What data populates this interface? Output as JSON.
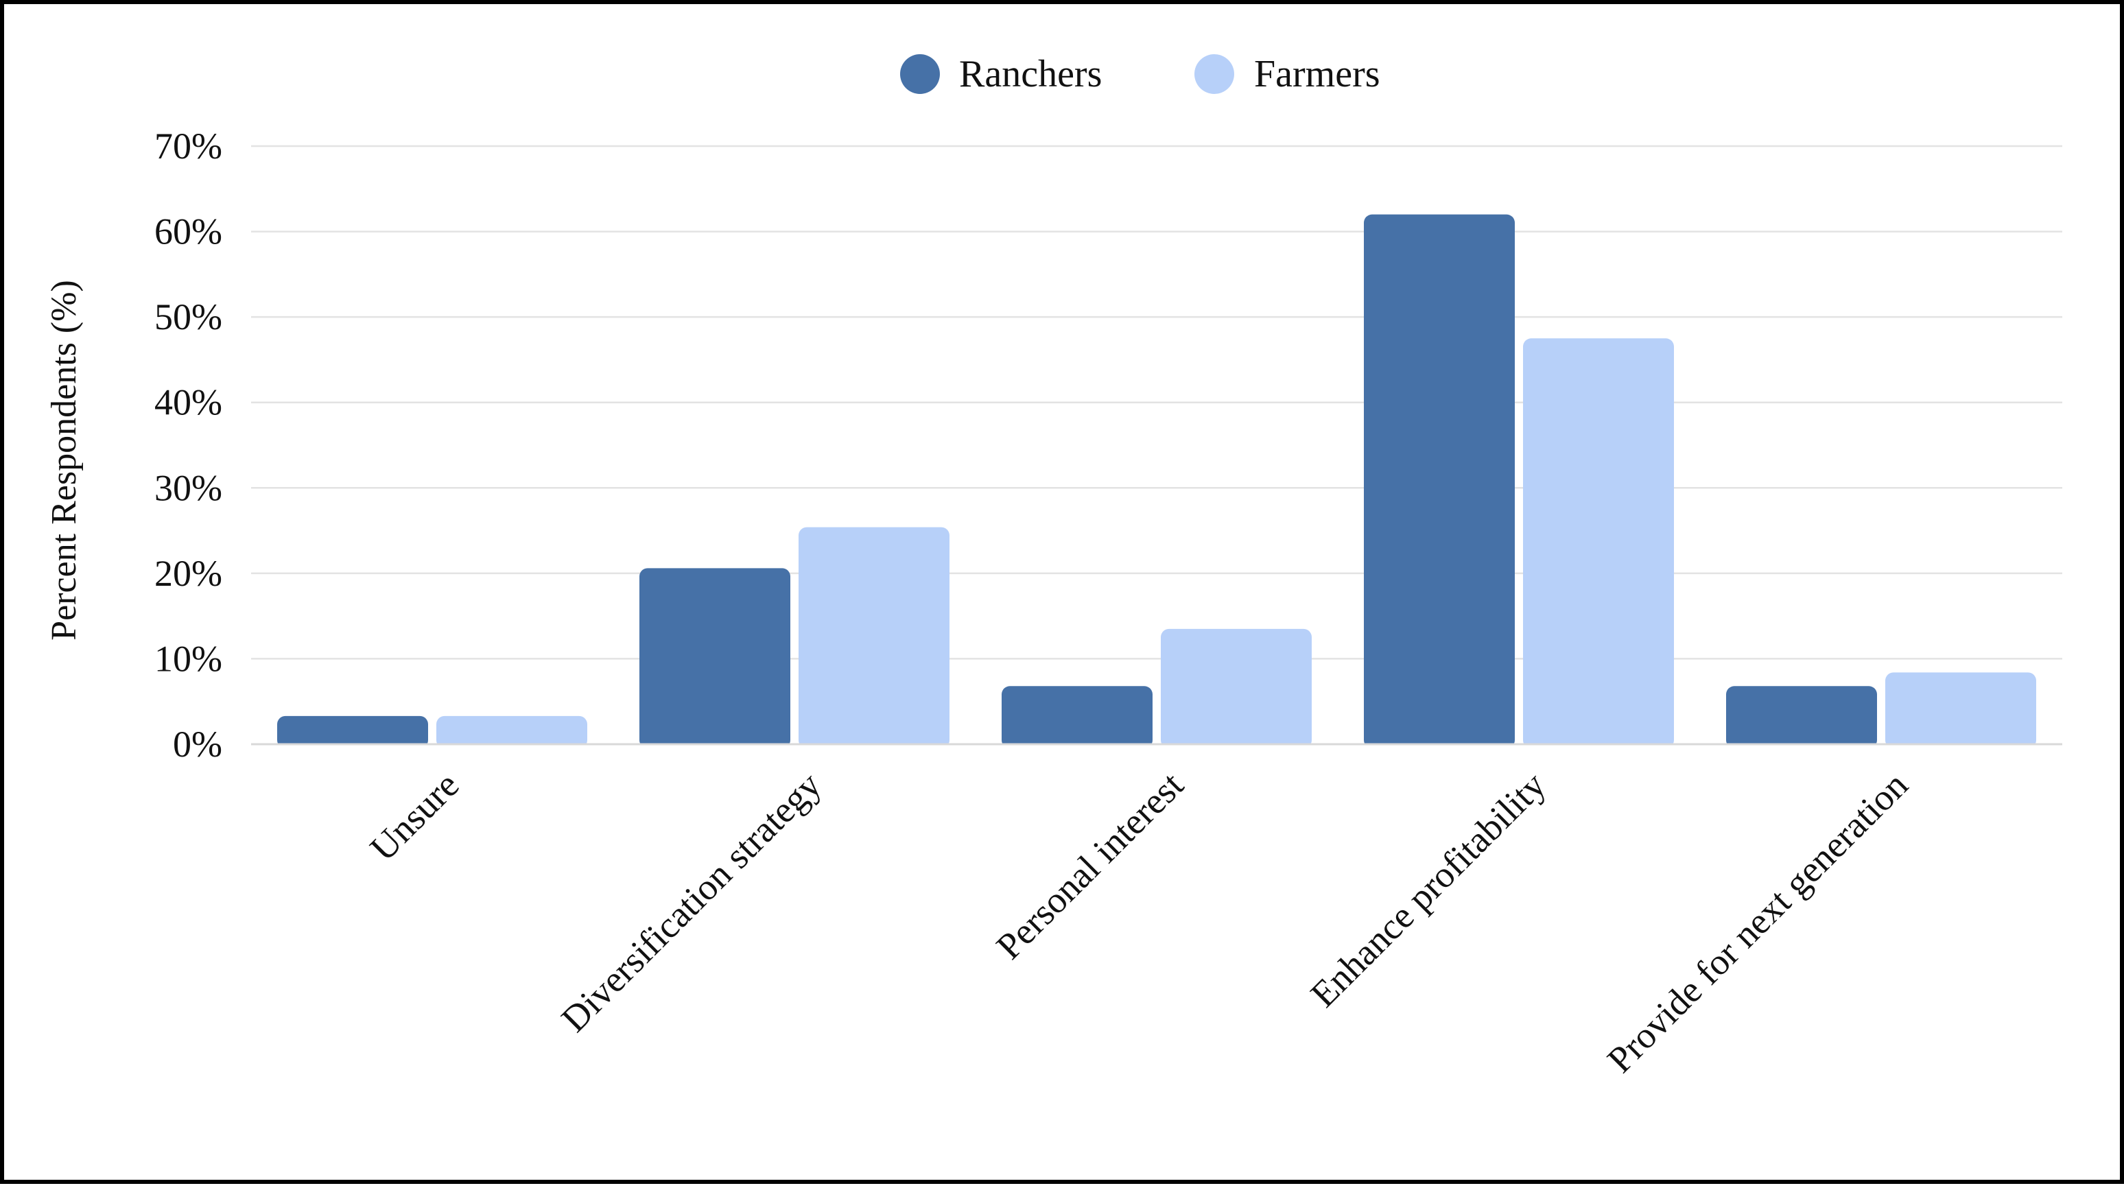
{
  "chart_data": {
    "type": "bar",
    "title": "",
    "xlabel": "",
    "ylabel": "Percent Respondents (%)",
    "ylim": [
      0,
      70
    ],
    "yticks": [
      0,
      10,
      20,
      30,
      40,
      50,
      60,
      70
    ],
    "ytick_labels": [
      "0%",
      "10%",
      "20%",
      "30%",
      "40%",
      "50%",
      "60%",
      "70%"
    ],
    "grid": true,
    "legend_position": "top-center",
    "categories": [
      "Unsure",
      "Diversification strategy",
      "Personal interest",
      "Enhance profitability",
      "Provide for next generation"
    ],
    "series": [
      {
        "name": "Ranchers",
        "color": "#4671a7",
        "values": [
          3.3,
          20.6,
          6.8,
          62.0,
          6.8
        ]
      },
      {
        "name": "Farmers",
        "color": "#b7d0f9",
        "values": [
          3.3,
          25.4,
          13.5,
          47.5,
          8.4
        ]
      }
    ]
  }
}
